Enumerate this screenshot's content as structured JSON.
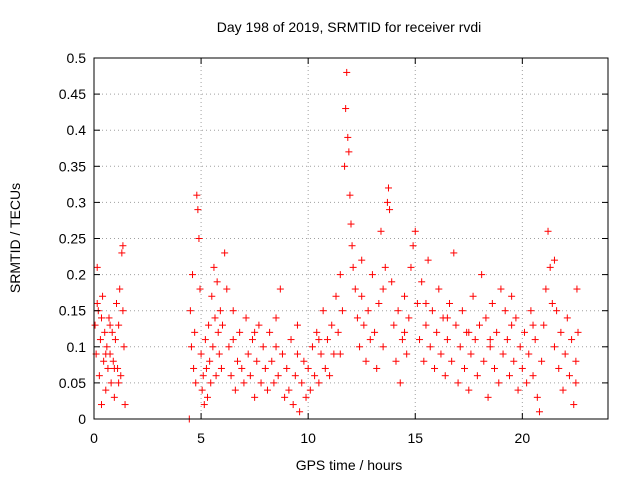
{
  "chart_data": {
    "type": "scatter",
    "title": "Day 198 of 2019, SRMTID for receiver rvdi",
    "xlabel": "GPS time / hours",
    "ylabel": "SRMTID / TECUs",
    "xlim": [
      0,
      24
    ],
    "ylim": [
      0,
      0.5
    ],
    "grid": true,
    "marker": "+",
    "x_ticks": [
      0,
      5,
      10,
      15,
      20
    ],
    "y_ticks": [
      0,
      0.05,
      0.1,
      0.15,
      0.2,
      0.25,
      0.3,
      0.35,
      0.4,
      0.45,
      0.5
    ],
    "color": "#ff0000",
    "series": [
      {
        "points": [
          [
            0.05,
            0.13
          ],
          [
            0.1,
            0.09
          ],
          [
            0.15,
            0.21
          ],
          [
            0.2,
            0.15
          ],
          [
            0.25,
            0.06
          ],
          [
            0.3,
            0.11
          ],
          [
            0.35,
            0.02
          ],
          [
            0.4,
            0.17
          ],
          [
            0.45,
            0.08
          ],
          [
            0.5,
            0.12
          ],
          [
            0.55,
            0.04
          ],
          [
            0.6,
            0.1
          ],
          [
            0.65,
            0.07
          ],
          [
            0.7,
            0.14
          ],
          [
            0.75,
            0.09
          ],
          [
            0.8,
            0.05
          ],
          [
            0.85,
            0.12
          ],
          [
            0.9,
            0.08
          ],
          [
            0.95,
            0.03
          ],
          [
            1.0,
            0.11
          ],
          [
            1.05,
            0.16
          ],
          [
            1.1,
            0.07
          ],
          [
            1.15,
            0.13
          ],
          [
            1.2,
            0.18
          ],
          [
            1.25,
            0.06
          ],
          [
            1.3,
            0.23
          ],
          [
            1.35,
            0.24
          ],
          [
            1.4,
            0.1
          ],
          [
            1.45,
            0.02
          ],
          [
            0.15,
            0.16
          ],
          [
            0.35,
            0.14
          ],
          [
            0.55,
            0.09
          ],
          [
            0.75,
            0.13
          ],
          [
            0.95,
            0.07
          ],
          [
            1.15,
            0.05
          ],
          [
            1.35,
            0.15
          ],
          [
            4.45,
            0.0
          ],
          [
            4.5,
            0.15
          ],
          [
            4.55,
            0.1
          ],
          [
            4.6,
            0.2
          ],
          [
            4.65,
            0.07
          ],
          [
            4.7,
            0.12
          ],
          [
            4.75,
            0.05
          ],
          [
            4.8,
            0.31
          ],
          [
            4.85,
            0.29
          ],
          [
            4.9,
            0.25
          ],
          [
            4.95,
            0.18
          ],
          [
            5.0,
            0.09
          ],
          [
            5.05,
            0.04
          ],
          [
            5.1,
            0.06
          ],
          [
            5.15,
            0.02
          ],
          [
            5.2,
            0.11
          ],
          [
            5.25,
            0.07
          ],
          [
            5.3,
            0.03
          ],
          [
            5.35,
            0.13
          ],
          [
            5.4,
            0.08
          ],
          [
            5.45,
            0.05
          ],
          [
            5.5,
            0.17
          ],
          [
            5.55,
            0.1
          ],
          [
            5.6,
            0.21
          ],
          [
            5.65,
            0.14
          ],
          [
            5.7,
            0.06
          ],
          [
            5.75,
            0.19
          ],
          [
            5.8,
            0.12
          ],
          [
            5.85,
            0.09
          ],
          [
            5.9,
            0.15
          ],
          [
            5.95,
            0.07
          ],
          [
            6.0,
            0.13
          ],
          [
            6.1,
            0.23
          ],
          [
            6.2,
            0.18
          ],
          [
            6.3,
            0.1
          ],
          [
            6.4,
            0.06
          ],
          [
            6.5,
            0.11
          ],
          [
            6.6,
            0.04
          ],
          [
            6.7,
            0.08
          ],
          [
            6.8,
            0.12
          ],
          [
            6.9,
            0.07
          ],
          [
            7.0,
            0.05
          ],
          [
            7.1,
            0.14
          ],
          [
            7.2,
            0.09
          ],
          [
            7.3,
            0.06
          ],
          [
            7.4,
            0.11
          ],
          [
            7.5,
            0.03
          ],
          [
            7.6,
            0.08
          ],
          [
            7.7,
            0.13
          ],
          [
            7.8,
            0.05
          ],
          [
            7.9,
            0.1
          ],
          [
            8.0,
            0.07
          ],
          [
            8.1,
            0.04
          ],
          [
            8.2,
            0.12
          ],
          [
            8.3,
            0.08
          ],
          [
            8.4,
            0.05
          ],
          [
            8.5,
            0.1
          ],
          [
            8.6,
            0.06
          ],
          [
            8.7,
            0.18
          ],
          [
            8.8,
            0.09
          ],
          [
            8.9,
            0.03
          ],
          [
            9.0,
            0.07
          ],
          [
            9.1,
            0.04
          ],
          [
            9.2,
            0.11
          ],
          [
            9.3,
            0.02
          ],
          [
            9.4,
            0.06
          ],
          [
            9.5,
            0.09
          ],
          [
            9.6,
            0.01
          ],
          [
            9.7,
            0.05
          ],
          [
            9.8,
            0.08
          ],
          [
            9.9,
            0.03
          ],
          [
            10.0,
            0.07
          ],
          [
            10.1,
            0.04
          ],
          [
            10.2,
            0.1
          ],
          [
            10.3,
            0.06
          ],
          [
            10.4,
            0.12
          ],
          [
            10.5,
            0.05
          ],
          [
            10.6,
            0.09
          ],
          [
            10.7,
            0.15
          ],
          [
            10.8,
            0.07
          ],
          [
            10.9,
            0.11
          ],
          [
            11.0,
            0.06
          ],
          [
            11.1,
            0.13
          ],
          [
            11.2,
            0.09
          ],
          [
            11.3,
            0.17
          ],
          [
            11.4,
            0.12
          ],
          [
            11.5,
            0.2
          ],
          [
            11.6,
            0.15
          ],
          [
            11.7,
            0.35
          ],
          [
            11.75,
            0.43
          ],
          [
            11.8,
            0.48
          ],
          [
            11.85,
            0.39
          ],
          [
            11.9,
            0.37
          ],
          [
            11.95,
            0.31
          ],
          [
            12.0,
            0.27
          ],
          [
            12.05,
            0.24
          ],
          [
            12.1,
            0.21
          ],
          [
            12.2,
            0.18
          ],
          [
            12.3,
            0.14
          ],
          [
            12.4,
            0.1
          ],
          [
            12.5,
            0.17
          ],
          [
            12.6,
            0.13
          ],
          [
            12.7,
            0.08
          ],
          [
            12.8,
            0.15
          ],
          [
            12.9,
            0.11
          ],
          [
            13.0,
            0.2
          ],
          [
            13.1,
            0.12
          ],
          [
            13.2,
            0.07
          ],
          [
            13.3,
            0.16
          ],
          [
            13.4,
            0.26
          ],
          [
            13.5,
            0.1
          ],
          [
            13.6,
            0.21
          ],
          [
            13.7,
            0.3
          ],
          [
            13.75,
            0.32
          ],
          [
            13.8,
            0.29
          ],
          [
            13.9,
            0.19
          ],
          [
            14.0,
            0.13
          ],
          [
            14.1,
            0.08
          ],
          [
            14.2,
            0.15
          ],
          [
            14.3,
            0.05
          ],
          [
            14.4,
            0.11
          ],
          [
            14.5,
            0.17
          ],
          [
            14.6,
            0.09
          ],
          [
            14.7,
            0.14
          ],
          [
            14.8,
            0.21
          ],
          [
            14.9,
            0.24
          ],
          [
            15.0,
            0.26
          ],
          [
            15.1,
            0.16
          ],
          [
            15.2,
            0.11
          ],
          [
            15.3,
            0.19
          ],
          [
            15.4,
            0.08
          ],
          [
            15.5,
            0.13
          ],
          [
            15.6,
            0.22
          ],
          [
            15.7,
            0.1
          ],
          [
            15.8,
            0.15
          ],
          [
            15.9,
            0.07
          ],
          [
            16.0,
            0.12
          ],
          [
            16.1,
            0.18
          ],
          [
            16.2,
            0.09
          ],
          [
            16.3,
            0.14
          ],
          [
            16.4,
            0.06
          ],
          [
            16.5,
            0.11
          ],
          [
            16.6,
            0.16
          ],
          [
            16.7,
            0.08
          ],
          [
            16.8,
            0.23
          ],
          [
            16.9,
            0.13
          ],
          [
            17.0,
            0.05
          ],
          [
            17.1,
            0.1
          ],
          [
            17.2,
            0.15
          ],
          [
            17.3,
            0.07
          ],
          [
            17.4,
            0.12
          ],
          [
            17.5,
            0.04
          ],
          [
            17.6,
            0.09
          ],
          [
            17.7,
            0.17
          ],
          [
            17.8,
            0.11
          ],
          [
            17.9,
            0.06
          ],
          [
            18.0,
            0.13
          ],
          [
            18.1,
            0.2
          ],
          [
            18.2,
            0.08
          ],
          [
            18.3,
            0.14
          ],
          [
            18.4,
            0.03
          ],
          [
            18.5,
            0.1
          ],
          [
            18.6,
            0.16
          ],
          [
            18.7,
            0.07
          ],
          [
            18.8,
            0.12
          ],
          [
            18.9,
            0.05
          ],
          [
            19.0,
            0.18
          ],
          [
            19.1,
            0.09
          ],
          [
            19.2,
            0.15
          ],
          [
            19.3,
            0.11
          ],
          [
            19.4,
            0.06
          ],
          [
            19.5,
            0.13
          ],
          [
            19.6,
            0.08
          ],
          [
            19.7,
            0.14
          ],
          [
            19.8,
            0.04
          ],
          [
            19.9,
            0.1
          ],
          [
            20.0,
            0.07
          ],
          [
            20.1,
            0.12
          ],
          [
            20.2,
            0.05
          ],
          [
            20.3,
            0.09
          ],
          [
            20.4,
            0.15
          ],
          [
            20.5,
            0.06
          ],
          [
            20.6,
            0.11
          ],
          [
            20.7,
            0.03
          ],
          [
            20.8,
            0.01
          ],
          [
            20.9,
            0.08
          ],
          [
            21.0,
            0.13
          ],
          [
            21.1,
            0.18
          ],
          [
            21.2,
            0.26
          ],
          [
            21.3,
            0.21
          ],
          [
            21.4,
            0.16
          ],
          [
            21.5,
            0.1
          ],
          [
            21.6,
            0.15
          ],
          [
            21.7,
            0.07
          ],
          [
            21.8,
            0.12
          ],
          [
            21.9,
            0.04
          ],
          [
            22.0,
            0.09
          ],
          [
            22.1,
            0.14
          ],
          [
            22.2,
            0.06
          ],
          [
            22.3,
            0.11
          ],
          [
            22.4,
            0.02
          ],
          [
            22.5,
            0.08
          ],
          [
            22.55,
            0.18
          ],
          [
            22.6,
            0.12
          ],
          [
            6.5,
            0.15
          ],
          [
            7.5,
            0.12
          ],
          [
            8.5,
            0.14
          ],
          [
            9.5,
            0.13
          ],
          [
            10.5,
            0.11
          ],
          [
            11.5,
            0.09
          ],
          [
            12.5,
            0.22
          ],
          [
            13.5,
            0.18
          ],
          [
            14.5,
            0.12
          ],
          [
            15.5,
            0.16
          ],
          [
            16.5,
            0.14
          ],
          [
            17.5,
            0.12
          ],
          [
            18.5,
            0.11
          ],
          [
            19.5,
            0.17
          ],
          [
            20.5,
            0.13
          ],
          [
            21.5,
            0.22
          ],
          [
            22.5,
            0.05
          ]
        ]
      }
    ]
  }
}
